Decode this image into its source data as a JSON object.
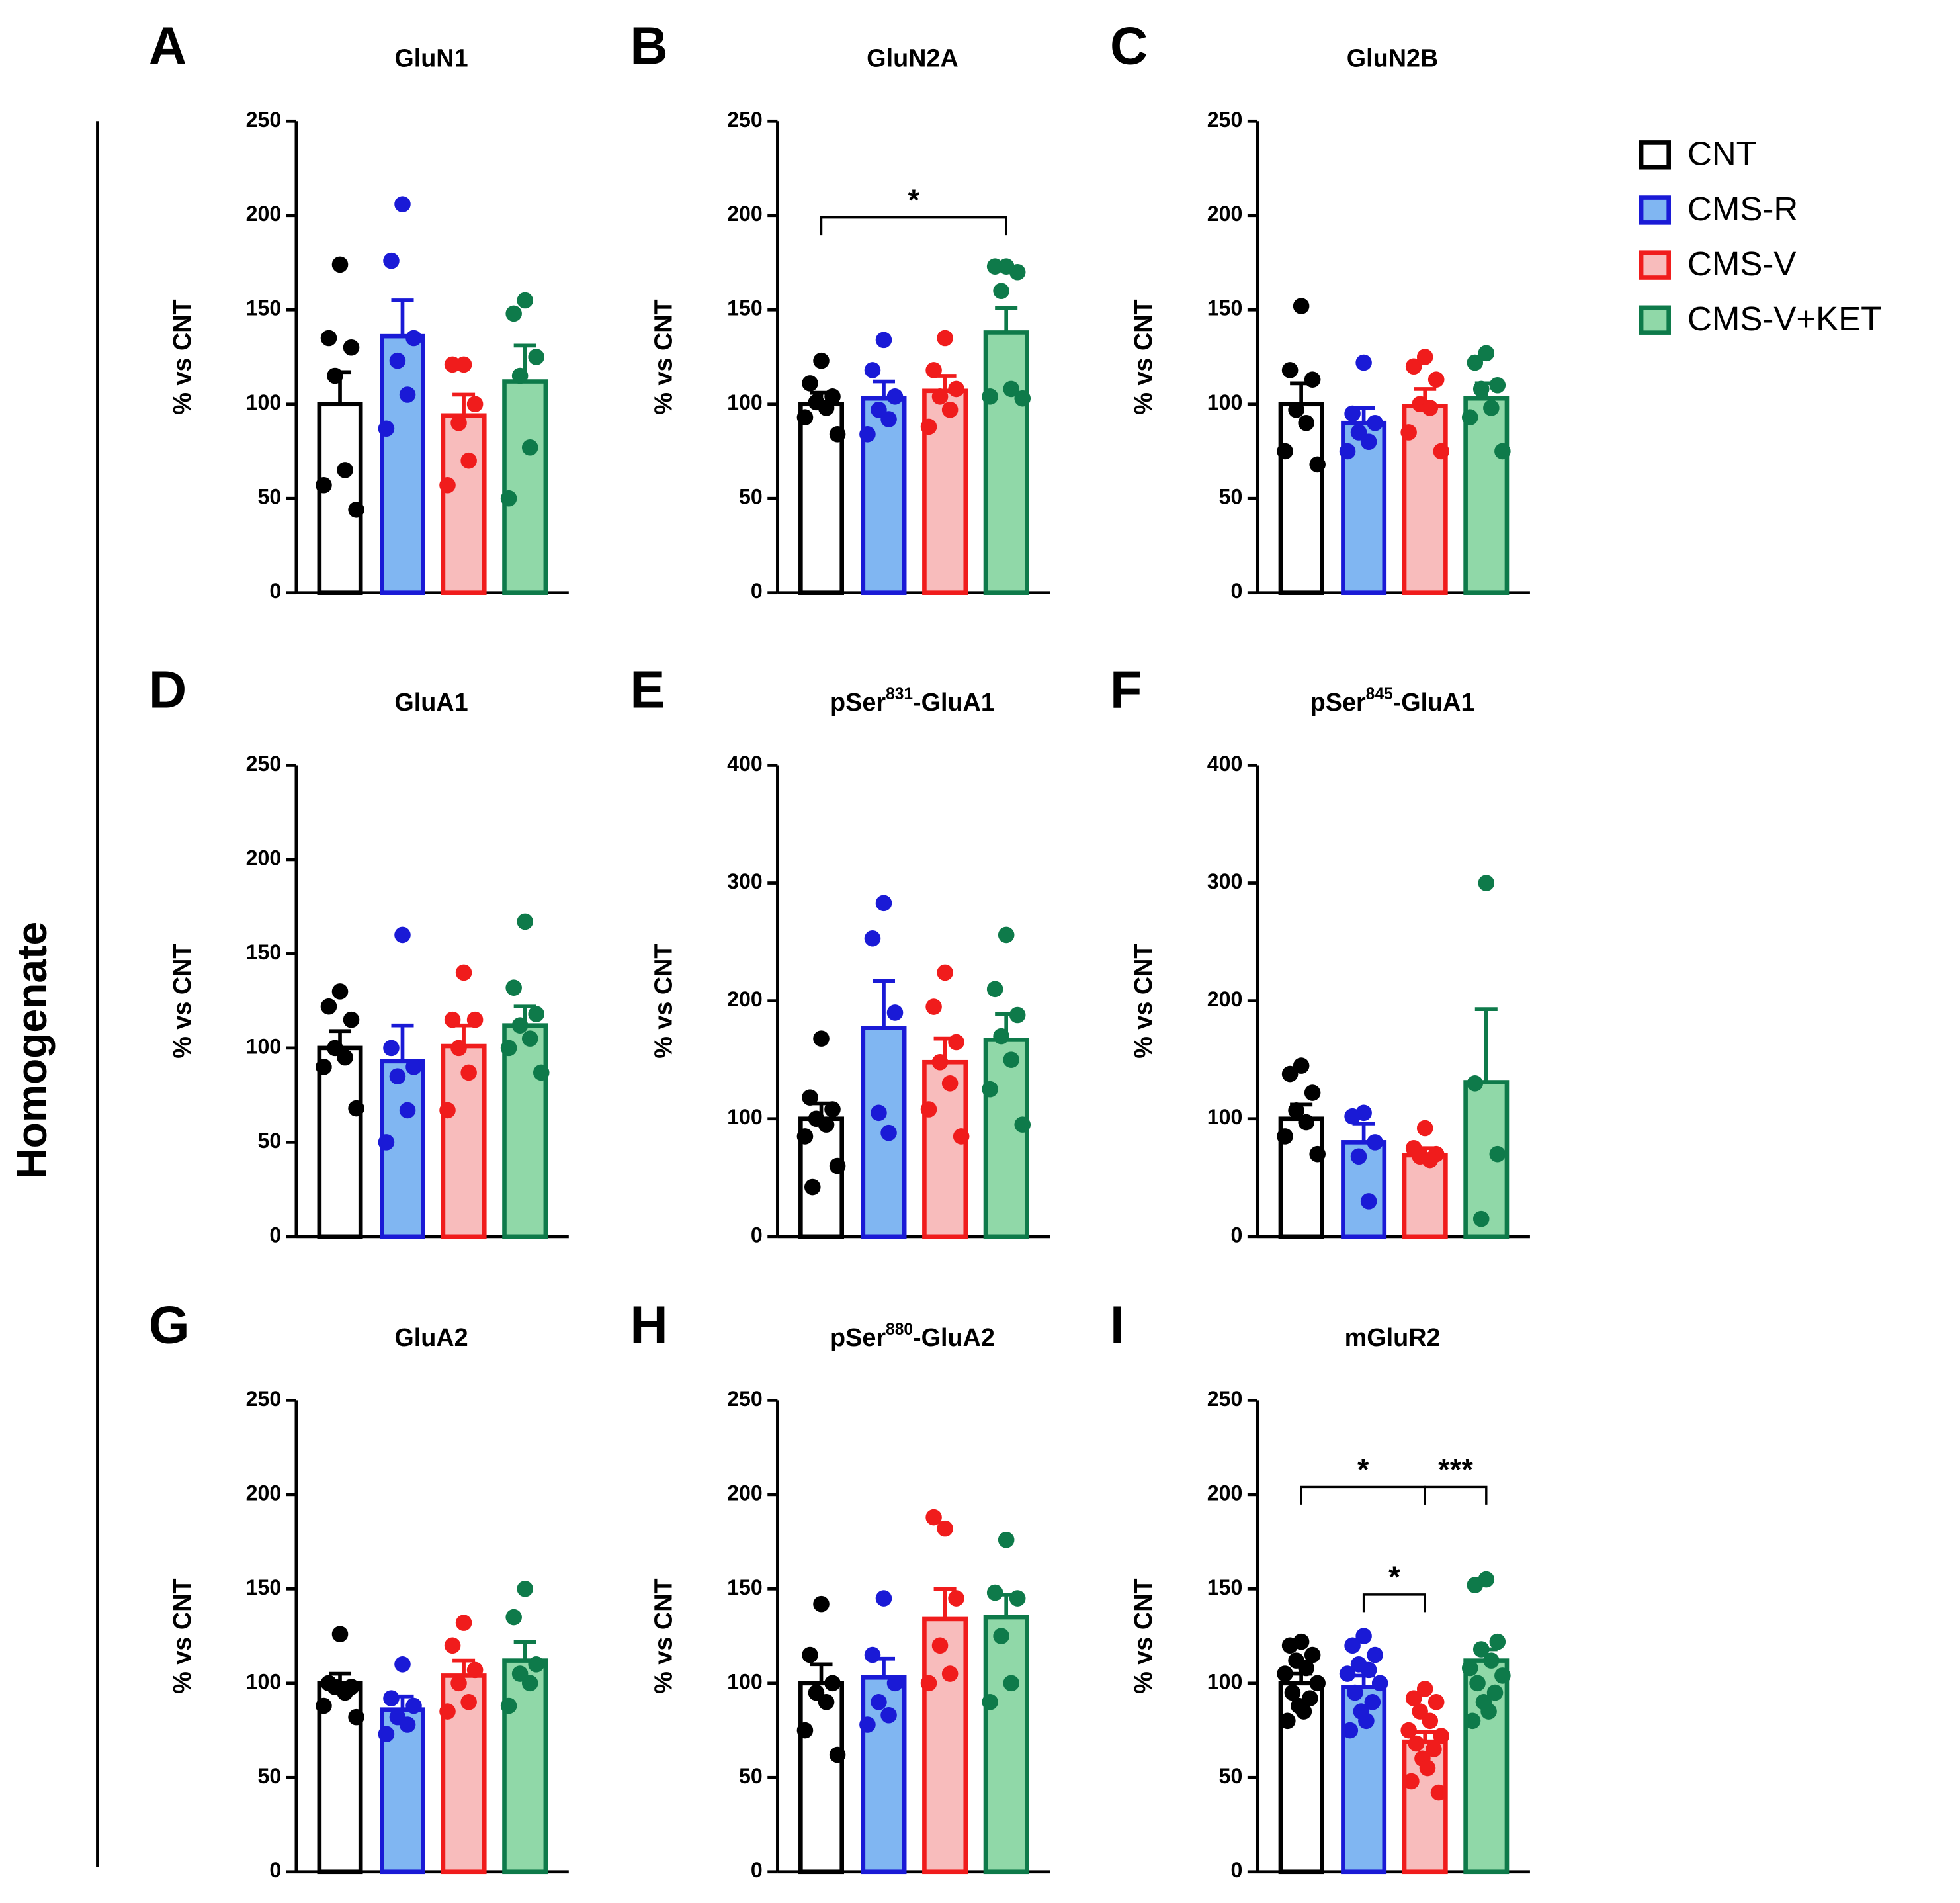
{
  "side_label": "Homogenate",
  "legend": [
    {
      "name": "CNT",
      "color": "#000000",
      "fill": "#ffffff"
    },
    {
      "name": "CMS-R",
      "color": "#1a1ad6",
      "fill": "#80b6f2"
    },
    {
      "name": "CMS-V",
      "color": "#f01c1c",
      "fill": "#f8bcbc"
    },
    {
      "name": "CMS-V+KET",
      "color": "#0e7a4a",
      "fill": "#90d8a8"
    }
  ],
  "chart_data": [
    {
      "type": "bar",
      "letter": "A",
      "title": [
        "GluN1"
      ],
      "ylabel": "% vs CNT",
      "ylim": [
        0,
        250
      ],
      "yticks": [
        0,
        50,
        100,
        150,
        200,
        250
      ],
      "values": [
        100,
        136,
        94,
        112
      ],
      "errors": [
        17,
        19,
        11,
        19
      ],
      "points": [
        [
          174,
          135,
          130,
          115,
          65,
          57,
          44
        ],
        [
          206,
          176,
          135,
          123,
          105,
          87
        ],
        [
          121,
          121,
          100,
          90,
          70,
          57
        ],
        [
          155,
          148,
          125,
          115,
          77,
          50
        ]
      ],
      "annotations": []
    },
    {
      "type": "bar",
      "letter": "B",
      "title": [
        "GluN2A"
      ],
      "ylabel": "% vs CNT",
      "ylim": [
        0,
        250
      ],
      "yticks": [
        0,
        50,
        100,
        150,
        200,
        250
      ],
      "values": [
        100,
        103,
        107,
        138
      ],
      "errors": [
        6,
        9,
        8,
        13
      ],
      "points": [
        [
          123,
          111,
          104,
          101,
          98,
          93,
          84
        ],
        [
          134,
          118,
          104,
          97,
          92,
          84
        ],
        [
          135,
          118,
          108,
          104,
          97,
          88
        ],
        [
          173,
          173,
          170,
          160,
          108,
          104,
          103
        ]
      ],
      "annotations": [
        {
          "from": 0,
          "to": 3,
          "y": 199,
          "label": "*"
        }
      ]
    },
    {
      "type": "bar",
      "letter": "C",
      "title": [
        "GluN2B"
      ],
      "ylabel": "% vs CNT",
      "ylim": [
        0,
        250
      ],
      "yticks": [
        0,
        50,
        100,
        150,
        200,
        250
      ],
      "values": [
        100,
        90,
        99,
        103
      ],
      "errors": [
        11,
        8,
        9,
        8
      ],
      "points": [
        [
          152,
          118,
          113,
          97,
          90,
          75,
          68
        ],
        [
          122,
          95,
          90,
          85,
          80,
          75
        ],
        [
          125,
          120,
          113,
          100,
          98,
          85,
          75
        ],
        [
          127,
          122,
          110,
          108,
          98,
          93,
          75
        ]
      ],
      "annotations": []
    },
    {
      "type": "bar",
      "letter": "D",
      "title": [
        "GluA1"
      ],
      "ylabel": "% vs CNT",
      "ylim": [
        0,
        250
      ],
      "yticks": [
        0,
        50,
        100,
        150,
        200,
        250
      ],
      "values": [
        100,
        93,
        101,
        112
      ],
      "errors": [
        9,
        19,
        11,
        10
      ],
      "points": [
        [
          130,
          122,
          115,
          100,
          95,
          90,
          68
        ],
        [
          160,
          100,
          90,
          85,
          67,
          50
        ],
        [
          140,
          115,
          115,
          100,
          87,
          67
        ],
        [
          167,
          132,
          118,
          112,
          105,
          100,
          87
        ]
      ],
      "annotations": []
    },
    {
      "type": "bar",
      "letter": "E",
      "title": [
        "pSer",
        "831",
        "-GluA1"
      ],
      "ylabel": "% vs CNT",
      "ylim": [
        0,
        400
      ],
      "yticks": [
        0,
        100,
        200,
        300,
        400
      ],
      "values": [
        100,
        177,
        148,
        167
      ],
      "errors": [
        13,
        40,
        20,
        22
      ],
      "points": [
        [
          168,
          118,
          108,
          100,
          95,
          85,
          60,
          42
        ],
        [
          283,
          253,
          190,
          105,
          88
        ],
        [
          224,
          195,
          165,
          148,
          130,
          108,
          85
        ],
        [
          256,
          210,
          188,
          170,
          150,
          125,
          95
        ]
      ],
      "annotations": []
    },
    {
      "type": "bar",
      "letter": "F",
      "title": [
        "pSer",
        "845",
        "-GluA1"
      ],
      "ylabel": "% vs CNT",
      "ylim": [
        0,
        400
      ],
      "yticks": [
        0,
        100,
        200,
        300,
        400
      ],
      "values": [
        100,
        80,
        69,
        131
      ],
      "errors": [
        12,
        16,
        6,
        62
      ],
      "points": [
        [
          145,
          138,
          122,
          107,
          97,
          85,
          70
        ],
        [
          105,
          102,
          80,
          68,
          30
        ],
        [
          92,
          75,
          70,
          68,
          65
        ],
        [
          300,
          130,
          70,
          15
        ]
      ],
      "annotations": []
    },
    {
      "type": "bar",
      "letter": "G",
      "title": [
        "GluA2"
      ],
      "ylabel": "% vs CNT",
      "ylim": [
        0,
        250
      ],
      "yticks": [
        0,
        50,
        100,
        150,
        200,
        250
      ],
      "values": [
        100,
        86,
        104,
        112
      ],
      "errors": [
        5,
        7,
        8,
        10
      ],
      "points": [
        [
          126,
          100,
          98,
          98,
          95,
          88,
          82
        ],
        [
          110,
          92,
          88,
          82,
          78,
          73
        ],
        [
          132,
          120,
          107,
          100,
          90,
          85
        ],
        [
          150,
          135,
          110,
          105,
          100,
          88
        ]
      ],
      "annotations": []
    },
    {
      "type": "bar",
      "letter": "H",
      "title": [
        "pSer",
        "880",
        "-GluA2"
      ],
      "ylabel": "% vs CNT",
      "ylim": [
        0,
        250
      ],
      "yticks": [
        0,
        50,
        100,
        150,
        200,
        250
      ],
      "values": [
        100,
        103,
        134,
        135
      ],
      "errors": [
        10,
        10,
        16,
        12
      ],
      "points": [
        [
          142,
          115,
          100,
          95,
          90,
          75,
          62
        ],
        [
          145,
          115,
          100,
          90,
          83,
          78
        ],
        [
          182,
          188,
          145,
          120,
          105,
          100
        ],
        [
          176,
          148,
          145,
          125,
          100,
          90
        ]
      ],
      "annotations": []
    },
    {
      "type": "bar",
      "letter": "I",
      "title": [
        "mGluR2"
      ],
      "ylabel": "% vs CNT",
      "ylim": [
        0,
        250
      ],
      "yticks": [
        0,
        50,
        100,
        150,
        200,
        250
      ],
      "values": [
        100,
        98,
        69,
        112
      ],
      "errors": [
        5,
        6,
        5,
        6
      ],
      "points": [
        [
          122,
          120,
          115,
          112,
          108,
          105,
          100,
          95,
          92,
          88,
          85,
          80
        ],
        [
          125,
          120,
          115,
          110,
          107,
          105,
          100,
          95,
          90,
          85,
          80,
          75
        ],
        [
          97,
          92,
          90,
          85,
          80,
          75,
          72,
          68,
          65,
          60,
          55,
          48,
          42
        ],
        [
          155,
          152,
          122,
          118,
          112,
          108,
          104,
          100,
          95,
          90,
          85,
          80
        ]
      ],
      "annotations": [
        {
          "from": 0,
          "to": 2,
          "y": 204,
          "label": "*"
        },
        {
          "from": 1,
          "to": 2,
          "y": 147,
          "label": "*"
        },
        {
          "from": 2,
          "to": 3,
          "y": 204,
          "label": "***"
        }
      ]
    }
  ]
}
